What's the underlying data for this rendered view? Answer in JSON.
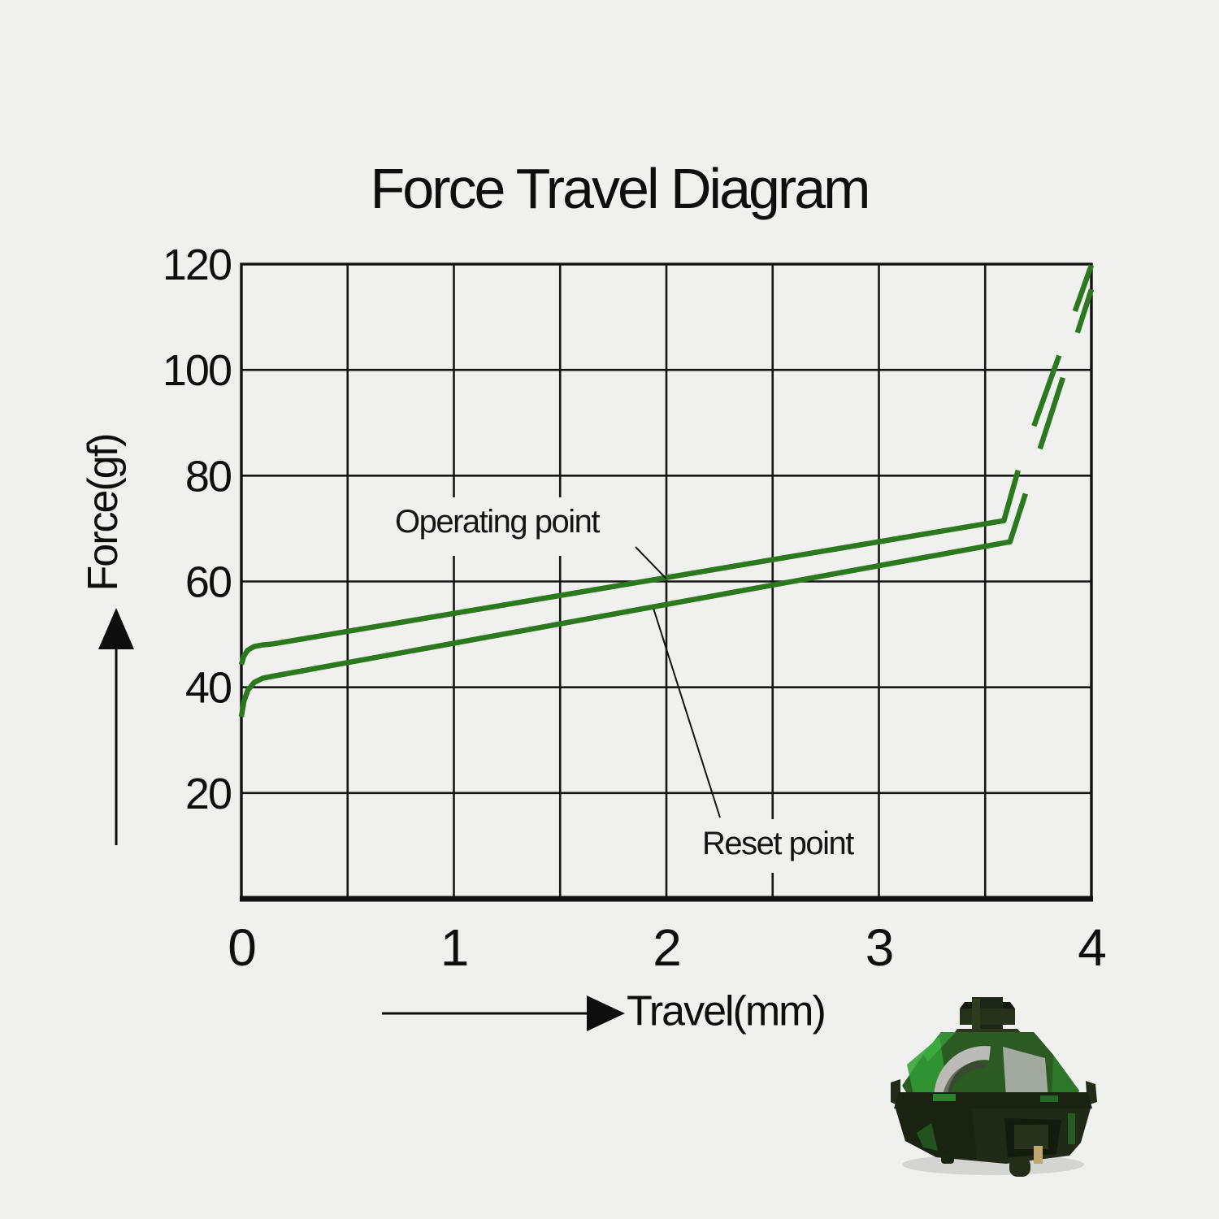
{
  "page": {
    "background_color": "#f0f0ee",
    "text_color": "#0e0e0e",
    "accent_green": "#2c781e",
    "switch_image": "green-translucent-mechanical-keyboard-switch"
  },
  "chart_data": {
    "type": "line",
    "title": "Force Travel Diagram",
    "xlabel": "Travel(mm)",
    "ylabel": "Force(gf)",
    "xlim": [
      0,
      4
    ],
    "ylim": [
      0,
      120
    ],
    "x_ticks": [
      0,
      1,
      2,
      3,
      4
    ],
    "y_ticks": [
      20,
      40,
      60,
      80,
      100,
      120
    ],
    "grid": true,
    "grid_step_x_mm": 0.5,
    "grid_step_y_gf": 20,
    "legend_position": "none",
    "series": [
      {
        "name": "downstroke (press) force curve",
        "color": "#2c781e",
        "segments": [
          {
            "style": "solid",
            "points": [
              [
                0,
                44.3
              ],
              [
                0.012,
                45.9
              ],
              [
                0.03,
                47.0
              ],
              [
                0.06,
                47.7
              ],
              [
                0.1,
                48.0
              ],
              [
                0.15,
                48.2
              ],
              [
                3.588,
                71.5
              ],
              [
                3.655,
                81.0
              ]
            ]
          },
          {
            "style": "dashed",
            "points": [
              [
                3.655,
                81.0
              ],
              [
                4,
                119.8
              ]
            ]
          }
        ]
      },
      {
        "name": "upstroke (release) force curve",
        "color": "#2c781e",
        "segments": [
          {
            "style": "solid",
            "points": [
              [
                0,
                34.4
              ],
              [
                0.012,
                37.3
              ],
              [
                0.03,
                39.4
              ],
              [
                0.06,
                40.9
              ],
              [
                0.1,
                41.7
              ],
              [
                0.15,
                42.1
              ],
              [
                3.617,
                67.5
              ],
              [
                3.69,
                76.6
              ]
            ]
          },
          {
            "style": "dashed",
            "points": [
              [
                3.69,
                76.6
              ],
              [
                4,
                115.2
              ]
            ]
          }
        ]
      }
    ],
    "annotations": [
      {
        "label": "Operating point",
        "target_mm": 2.0,
        "target_gf": 60.5
      },
      {
        "label": "Reset point",
        "target_mm": 1.94,
        "target_gf": 54.8
      }
    ]
  }
}
